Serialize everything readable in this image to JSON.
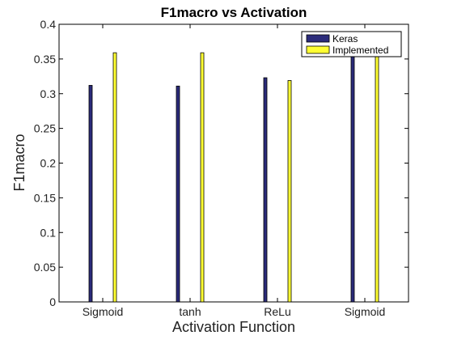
{
  "chart_data": {
    "type": "bar",
    "title": "F1macro vs Activation",
    "xlabel": "Activation Function",
    "ylabel": "F1macro",
    "categories": [
      "Sigmoid",
      "tanh",
      "ReLu",
      "Sigmoid"
    ],
    "series": [
      {
        "name": "Keras",
        "values": [
          0.312,
          0.311,
          0.323,
          0.362
        ],
        "color": "#2b2b7a"
      },
      {
        "name": "Implemented",
        "values": [
          0.359,
          0.359,
          0.319,
          0.389
        ],
        "color": "#ffff33"
      }
    ],
    "ylim": [
      0,
      0.4
    ],
    "yticks": [
      0,
      0.05,
      0.1,
      0.15,
      0.2,
      0.25,
      0.3,
      0.35,
      0.4
    ],
    "ytick_labels": [
      "0",
      "0.05",
      "0.1",
      "0.15",
      "0.2",
      "0.25",
      "0.3",
      "0.35",
      "0.4"
    ],
    "grid": false,
    "legend_position": "top-right"
  }
}
